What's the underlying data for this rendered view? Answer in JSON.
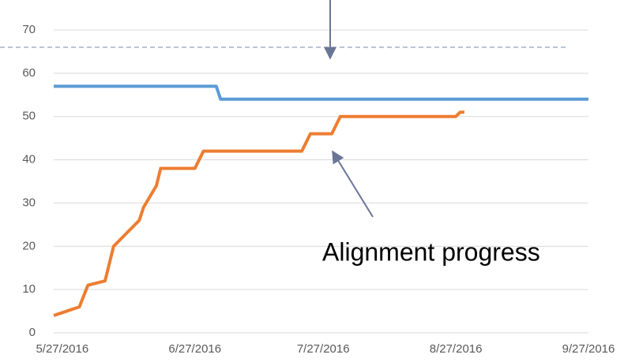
{
  "chart_data": {
    "type": "line",
    "annotation": "Alignment progress",
    "xlim": [
      "5/25/2016",
      "9/27/2016"
    ],
    "xticks": [
      "5/27/2016",
      "6/27/2016",
      "7/27/2016",
      "8/27/2016",
      "9/27/2016"
    ],
    "ylim": [
      0,
      70
    ],
    "yticks": [
      0,
      10,
      20,
      30,
      40,
      50,
      60,
      70
    ],
    "grid": true,
    "reference_line": 66,
    "series": [
      {
        "color": "#5b9bd5",
        "x": [
          "5/25/2016",
          "7/2/2016",
          "7/3/2016",
          "9/27/2016"
        ],
        "values": [
          57,
          57,
          54,
          54
        ]
      },
      {
        "color": "#ed7d31",
        "x": [
          "5/25/2016",
          "5/31/2016",
          "6/2/2016",
          "6/6/2016",
          "6/8/2016",
          "6/14/2016",
          "6/15/2016",
          "6/18/2016",
          "6/19/2016",
          "6/27/2016",
          "6/29/2016",
          "7/22/2016",
          "7/24/2016",
          "7/29/2016",
          "7/31/2016",
          "8/27/2016",
          "8/28/2016",
          "8/29/2016"
        ],
        "values": [
          4,
          6,
          11,
          12,
          20,
          26,
          29,
          34,
          38,
          38,
          42,
          42,
          46,
          46,
          50,
          50,
          51,
          51
        ]
      }
    ]
  }
}
